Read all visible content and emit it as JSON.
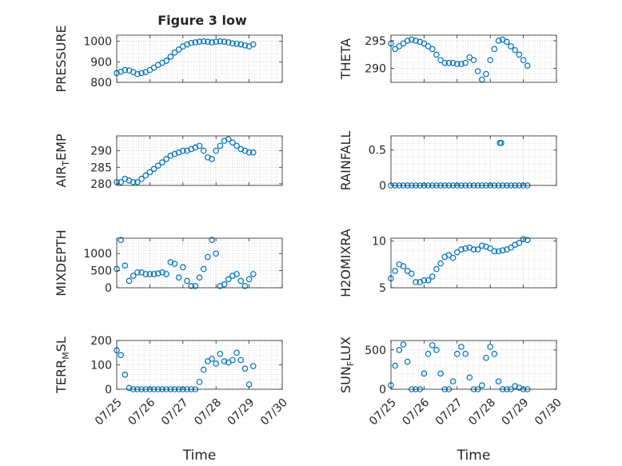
{
  "figure": {
    "title": "Figure 3 low"
  },
  "marker_color": "#0072BD",
  "chart_data": [
    {
      "type": "scatter",
      "ylabel": "PRESSURE",
      "xlim": [
        "07/25",
        "07/30"
      ],
      "ylim": [
        800,
        1030
      ],
      "yticks": [
        800,
        900,
        1000
      ],
      "grid": true,
      "xtick_labels": [],
      "x": [
        "07/25 00:00",
        "07/25 03:00",
        "07/25 06:00",
        "07/25 09:00",
        "07/25 12:00",
        "07/25 15:00",
        "07/25 18:00",
        "07/25 21:00",
        "07/26 00:00",
        "07/26 03:00",
        "07/26 06:00",
        "07/26 09:00",
        "07/26 12:00",
        "07/26 15:00",
        "07/26 18:00",
        "07/26 21:00",
        "07/27 00:00",
        "07/27 03:00",
        "07/27 06:00",
        "07/27 09:00",
        "07/27 12:00",
        "07/27 15:00",
        "07/27 18:00",
        "07/27 21:00",
        "07/28 00:00",
        "07/28 03:00",
        "07/28 06:00",
        "07/28 09:00",
        "07/28 12:00",
        "07/28 15:00",
        "07/28 18:00",
        "07/28 21:00",
        "07/29 00:00",
        "07/29 03:00"
      ],
      "y": [
        845,
        852,
        860,
        858,
        850,
        840,
        845,
        850,
        860,
        872,
        885,
        895,
        905,
        925,
        945,
        960,
        975,
        985,
        992,
        995,
        998,
        1000,
        998,
        995,
        998,
        1000,
        998,
        995,
        990,
        988,
        985,
        980,
        975,
        985
      ]
    },
    {
      "type": "scatter",
      "ylabel": "THETA",
      "xlim": [
        "07/25",
        "07/30"
      ],
      "ylim": [
        287.5,
        296
      ],
      "yticks": [
        290,
        295
      ],
      "grid": true,
      "xtick_labels": [],
      "x": [
        "07/25 00:00",
        "07/25 03:00",
        "07/25 06:00",
        "07/25 09:00",
        "07/25 12:00",
        "07/25 15:00",
        "07/25 18:00",
        "07/25 21:00",
        "07/26 00:00",
        "07/26 03:00",
        "07/26 06:00",
        "07/26 09:00",
        "07/26 12:00",
        "07/26 15:00",
        "07/26 18:00",
        "07/26 21:00",
        "07/27 00:00",
        "07/27 03:00",
        "07/27 06:00",
        "07/27 09:00",
        "07/27 12:00",
        "07/27 15:00",
        "07/27 18:00",
        "07/27 21:00",
        "07/28 00:00",
        "07/28 03:00",
        "07/28 06:00",
        "07/28 09:00",
        "07/28 12:00",
        "07/28 15:00",
        "07/28 18:00",
        "07/28 21:00",
        "07/29 00:00",
        "07/29 03:00"
      ],
      "y": [
        294.5,
        293.5,
        294,
        294.5,
        295,
        295.2,
        295,
        294.8,
        294.5,
        294,
        293.5,
        292.5,
        291.5,
        291,
        291,
        291,
        290.8,
        290.8,
        291,
        292,
        291.5,
        289.5,
        288,
        289,
        291.5,
        293.5,
        295,
        295.2,
        294.8,
        294,
        293.3,
        292.5,
        291.5,
        290.5
      ]
    },
    {
      "type": "scatter",
      "ylabel": "AIR_TEMP",
      "xlim": [
        "07/25",
        "07/30"
      ],
      "ylim": [
        279.5,
        294.5
      ],
      "yticks": [
        280,
        285,
        290
      ],
      "grid": true,
      "xtick_labels": [],
      "x": [
        "07/25 00:00",
        "07/25 03:00",
        "07/25 06:00",
        "07/25 09:00",
        "07/25 12:00",
        "07/25 15:00",
        "07/25 18:00",
        "07/25 21:00",
        "07/26 00:00",
        "07/26 03:00",
        "07/26 06:00",
        "07/26 09:00",
        "07/26 12:00",
        "07/26 15:00",
        "07/26 18:00",
        "07/26 21:00",
        "07/27 00:00",
        "07/27 03:00",
        "07/27 06:00",
        "07/27 09:00",
        "07/27 12:00",
        "07/27 15:00",
        "07/27 18:00",
        "07/27 21:00",
        "07/28 00:00",
        "07/28 03:00",
        "07/28 06:00",
        "07/28 09:00",
        "07/28 12:00",
        "07/28 15:00",
        "07/28 18:00",
        "07/28 21:00",
        "07/29 00:00",
        "07/29 03:00"
      ],
      "y": [
        280.5,
        280.5,
        281.5,
        281,
        280.5,
        280.5,
        281.5,
        282.5,
        283.5,
        284.5,
        285.5,
        286.5,
        287.5,
        288.5,
        289,
        289.5,
        290,
        290,
        290.5,
        291,
        291.5,
        290,
        288,
        287.5,
        290,
        291.5,
        293,
        293.5,
        292.5,
        291.5,
        290.5,
        290,
        289.5,
        289.5
      ]
    },
    {
      "type": "scatter",
      "ylabel": "RAINFALL",
      "xlim": [
        "07/25",
        "07/30"
      ],
      "ylim": [
        0,
        0.7
      ],
      "yticks": [
        0,
        0.5
      ],
      "ytick_labels": [
        "0",
        "0.5"
      ],
      "grid": true,
      "xtick_labels": [],
      "x": [
        "07/25 00:00",
        "07/25 03:00",
        "07/25 06:00",
        "07/25 09:00",
        "07/25 12:00",
        "07/25 15:00",
        "07/25 18:00",
        "07/25 21:00",
        "07/26 00:00",
        "07/26 03:00",
        "07/26 06:00",
        "07/26 09:00",
        "07/26 12:00",
        "07/26 15:00",
        "07/26 18:00",
        "07/26 21:00",
        "07/27 00:00",
        "07/27 03:00",
        "07/27 06:00",
        "07/27 09:00",
        "07/27 12:00",
        "07/27 15:00",
        "07/27 18:00",
        "07/27 21:00",
        "07/28 00:00",
        "07/28 03:00",
        "07/28 06:00",
        "07/28 09:00",
        "07/28 12:00",
        "07/28 15:00",
        "07/28 18:00",
        "07/28 21:00",
        "07/29 00:00",
        "07/29 03:00",
        "07/28 07:00",
        "07/28 08:00"
      ],
      "y": [
        0,
        0,
        0,
        0,
        0,
        0,
        0,
        0,
        0,
        0,
        0,
        0,
        0,
        0,
        0,
        0,
        0,
        0,
        0,
        0,
        0,
        0,
        0,
        0,
        0,
        0,
        0,
        0,
        0,
        0,
        0,
        0,
        0,
        0,
        0.6,
        0.6
      ]
    },
    {
      "type": "scatter",
      "ylabel": "MIXDEPTH",
      "xlim": [
        "07/25",
        "07/30"
      ],
      "ylim": [
        0,
        1450
      ],
      "yticks": [
        0,
        500,
        1000
      ],
      "grid": true,
      "xtick_labels": [],
      "x": [
        "07/25 00:00",
        "07/25 03:00",
        "07/25 06:00",
        "07/25 09:00",
        "07/25 12:00",
        "07/25 15:00",
        "07/25 18:00",
        "07/25 21:00",
        "07/26 00:00",
        "07/26 03:00",
        "07/26 06:00",
        "07/26 09:00",
        "07/26 12:00",
        "07/26 15:00",
        "07/26 18:00",
        "07/26 21:00",
        "07/27 00:00",
        "07/27 03:00",
        "07/27 06:00",
        "07/27 09:00",
        "07/27 12:00",
        "07/27 15:00",
        "07/27 18:00",
        "07/27 21:00",
        "07/28 00:00",
        "07/28 03:00",
        "07/28 06:00",
        "07/28 09:00",
        "07/28 12:00",
        "07/28 15:00",
        "07/28 18:00",
        "07/28 21:00",
        "07/29 00:00",
        "07/29 03:00"
      ],
      "y": [
        550,
        1400,
        650,
        200,
        350,
        450,
        450,
        400,
        400,
        400,
        420,
        450,
        400,
        750,
        700,
        300,
        600,
        200,
        50,
        50,
        300,
        550,
        900,
        1400,
        1000,
        50,
        100,
        250,
        350,
        400,
        200,
        50,
        250,
        400
      ]
    },
    {
      "type": "scatter",
      "ylabel": "H2OMIXRA",
      "xlim": [
        "07/25",
        "07/30"
      ],
      "ylim": [
        5,
        10.3
      ],
      "yticks": [
        5,
        10
      ],
      "grid": true,
      "xtick_labels": [],
      "x": [
        "07/25 00:00",
        "07/25 03:00",
        "07/25 06:00",
        "07/25 09:00",
        "07/25 12:00",
        "07/25 15:00",
        "07/25 18:00",
        "07/25 21:00",
        "07/26 00:00",
        "07/26 03:00",
        "07/26 06:00",
        "07/26 09:00",
        "07/26 12:00",
        "07/26 15:00",
        "07/26 18:00",
        "07/26 21:00",
        "07/27 00:00",
        "07/27 03:00",
        "07/27 06:00",
        "07/27 09:00",
        "07/27 12:00",
        "07/27 15:00",
        "07/27 18:00",
        "07/27 21:00",
        "07/28 00:00",
        "07/28 03:00",
        "07/28 06:00",
        "07/28 09:00",
        "07/28 12:00",
        "07/28 15:00",
        "07/28 18:00",
        "07/28 21:00",
        "07/29 00:00",
        "07/29 03:00"
      ],
      "y": [
        6,
        6.8,
        7.5,
        7.3,
        6.8,
        6.5,
        5.6,
        5.6,
        5.8,
        5.8,
        6.2,
        7,
        7.6,
        8.3,
        8.5,
        8.2,
        8.8,
        9.1,
        9.2,
        9.3,
        9.1,
        9.1,
        9.5,
        9.4,
        9.2,
        8.9,
        8.9,
        9,
        9.1,
        9.3,
        9.6,
        9.8,
        10.2,
        10.1
      ]
    },
    {
      "type": "scatter",
      "ylabel": "TERR_MSL",
      "xlim": [
        "07/25",
        "07/30"
      ],
      "ylim": [
        0,
        200
      ],
      "yticks": [
        0,
        100,
        200
      ],
      "grid": true,
      "xlabel": "Time",
      "xtick_labels": [
        "07/25",
        "07/26",
        "07/27",
        "07/28",
        "07/29",
        "07/30"
      ],
      "x": [
        "07/25 00:00",
        "07/25 03:00",
        "07/25 06:00",
        "07/25 09:00",
        "07/25 12:00",
        "07/25 15:00",
        "07/25 18:00",
        "07/25 21:00",
        "07/26 00:00",
        "07/26 03:00",
        "07/26 06:00",
        "07/26 09:00",
        "07/26 12:00",
        "07/26 15:00",
        "07/26 18:00",
        "07/26 21:00",
        "07/27 00:00",
        "07/27 03:00",
        "07/27 06:00",
        "07/27 09:00",
        "07/27 12:00",
        "07/27 15:00",
        "07/27 18:00",
        "07/27 21:00",
        "07/28 00:00",
        "07/28 03:00",
        "07/28 06:00",
        "07/28 09:00",
        "07/28 12:00",
        "07/28 15:00",
        "07/28 18:00",
        "07/28 21:00",
        "07/29 00:00",
        "07/29 03:00"
      ],
      "y": [
        160,
        140,
        60,
        5,
        0,
        0,
        0,
        0,
        0,
        0,
        0,
        0,
        0,
        0,
        0,
        0,
        0,
        0,
        0,
        0,
        30,
        80,
        115,
        125,
        105,
        145,
        115,
        110,
        120,
        150,
        120,
        85,
        20,
        95
      ]
    },
    {
      "type": "scatter",
      "ylabel": "SUN_FLUX",
      "xlim": [
        "07/25",
        "07/30"
      ],
      "ylim": [
        0,
        620
      ],
      "yticks": [
        0,
        500
      ],
      "grid": true,
      "xlabel": "Time",
      "xtick_labels": [
        "07/25",
        "07/26",
        "07/27",
        "07/28",
        "07/29",
        "07/30"
      ],
      "x": [
        "07/25 00:00",
        "07/25 03:00",
        "07/25 06:00",
        "07/25 09:00",
        "07/25 12:00",
        "07/25 15:00",
        "07/25 18:00",
        "07/25 21:00",
        "07/26 00:00",
        "07/26 03:00",
        "07/26 06:00",
        "07/26 09:00",
        "07/26 12:00",
        "07/26 15:00",
        "07/26 18:00",
        "07/26 21:00",
        "07/27 00:00",
        "07/27 03:00",
        "07/27 06:00",
        "07/27 09:00",
        "07/27 12:00",
        "07/27 15:00",
        "07/27 18:00",
        "07/27 21:00",
        "07/28 00:00",
        "07/28 03:00",
        "07/28 06:00",
        "07/28 09:00",
        "07/28 12:00",
        "07/28 15:00",
        "07/28 18:00",
        "07/28 21:00",
        "07/29 00:00",
        "07/29 03:00"
      ],
      "y": [
        50,
        300,
        500,
        570,
        350,
        0,
        0,
        0,
        200,
        450,
        560,
        500,
        200,
        0,
        0,
        100,
        450,
        540,
        450,
        150,
        0,
        0,
        50,
        400,
        540,
        450,
        100,
        0,
        0,
        0,
        40,
        20,
        0,
        0
      ]
    }
  ]
}
